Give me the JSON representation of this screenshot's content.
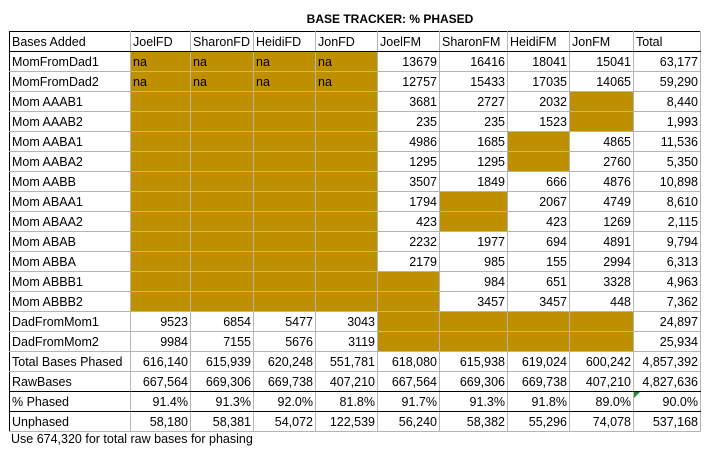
{
  "title": "BASE TRACKER: % PHASED",
  "columns": [
    "Bases Added",
    "JoelFD",
    "SharonFD",
    "HeidiFD",
    "JonFD",
    "JoelFM",
    "SharonFM",
    "HeidiFM",
    "JonFM",
    "Total"
  ],
  "rows": [
    {
      "label": "MomFromDad1",
      "cells": [
        "na",
        "na",
        "na",
        "na",
        "13679",
        "16416",
        "18041",
        "15041",
        "63,177"
      ],
      "gold": [
        0,
        1,
        2,
        3
      ]
    },
    {
      "label": "MomFromDad2",
      "cells": [
        "na",
        "na",
        "na",
        "na",
        "12757",
        "15433",
        "17035",
        "14065",
        "59,290"
      ],
      "gold": [
        0,
        1,
        2,
        3
      ]
    },
    {
      "label": "Mom AAAB1",
      "cells": [
        "",
        "",
        "",
        "",
        "3681",
        "2727",
        "2032",
        "",
        "8,440"
      ],
      "gold": [
        0,
        1,
        2,
        3,
        7
      ]
    },
    {
      "label": "Mom AAAB2",
      "cells": [
        "",
        "",
        "",
        "",
        "235",
        "235",
        "1523",
        "",
        "1,993"
      ],
      "gold": [
        0,
        1,
        2,
        3,
        7
      ]
    },
    {
      "label": "Mom AABA1",
      "cells": [
        "",
        "",
        "",
        "",
        "4986",
        "1685",
        "",
        "4865",
        "11,536"
      ],
      "gold": [
        0,
        1,
        2,
        3,
        6
      ]
    },
    {
      "label": "Mom AABA2",
      "cells": [
        "",
        "",
        "",
        "",
        "1295",
        "1295",
        "",
        "2760",
        "5,350"
      ],
      "gold": [
        0,
        1,
        2,
        3,
        6
      ]
    },
    {
      "label": "Mom AABB",
      "cells": [
        "",
        "",
        "",
        "",
        "3507",
        "1849",
        "666",
        "4876",
        "10,898"
      ],
      "gold": [
        0,
        1,
        2,
        3
      ]
    },
    {
      "label": "Mom ABAA1",
      "cells": [
        "",
        "",
        "",
        "",
        "1794",
        "",
        "2067",
        "4749",
        "8,610"
      ],
      "gold": [
        0,
        1,
        2,
        3,
        5
      ]
    },
    {
      "label": "Mom ABAA2",
      "cells": [
        "",
        "",
        "",
        "",
        "423",
        "",
        "423",
        "1269",
        "2,115"
      ],
      "gold": [
        0,
        1,
        2,
        3,
        5
      ]
    },
    {
      "label": "Mom ABAB",
      "cells": [
        "",
        "",
        "",
        "",
        "2232",
        "1977",
        "694",
        "4891",
        "9,794"
      ],
      "gold": [
        0,
        1,
        2,
        3
      ]
    },
    {
      "label": "Mom ABBA",
      "cells": [
        "",
        "",
        "",
        "",
        "2179",
        "985",
        "155",
        "2994",
        "6,313"
      ],
      "gold": [
        0,
        1,
        2,
        3
      ]
    },
    {
      "label": "Mom ABBB1",
      "cells": [
        "",
        "",
        "",
        "",
        "",
        "984",
        "651",
        "3328",
        "4,963"
      ],
      "gold": [
        0,
        1,
        2,
        3,
        4
      ]
    },
    {
      "label": "Mom ABBB2",
      "cells": [
        "",
        "",
        "",
        "",
        "",
        "3457",
        "3457",
        "448",
        "7,362"
      ],
      "gold": [
        0,
        1,
        2,
        3,
        4
      ]
    },
    {
      "label": "DadFromMom1",
      "cells": [
        "9523",
        "6854",
        "5477",
        "3043",
        "",
        "",
        "",
        "",
        "24,897"
      ],
      "gold": [
        4,
        5,
        6,
        7
      ]
    },
    {
      "label": "DadFromMom2",
      "cells": [
        "9984",
        "7155",
        "5676",
        "3119",
        "",
        "",
        "",
        "",
        "25,934"
      ],
      "gold": [
        4,
        5,
        6,
        7
      ]
    },
    {
      "label": "Total Bases Phased",
      "cells": [
        "616,140",
        "615,939",
        "620,248",
        "551,781",
        "618,080",
        "615,938",
        "619,024",
        "600,242",
        "4,857,392"
      ],
      "gold": []
    },
    {
      "label": "RawBases",
      "cells": [
        "667,564",
        "669,306",
        "669,738",
        "407,210",
        "667,564",
        "669,306",
        "669,738",
        "407,210",
        "4,827,636"
      ],
      "gold": []
    },
    {
      "label": "% Phased",
      "cells": [
        "91.4%",
        "91.3%",
        "92.0%",
        "81.8%",
        "91.7%",
        "91.3%",
        "91.8%",
        "89.0%",
        "90.0%"
      ],
      "gold": []
    },
    {
      "label": "Unphased",
      "cells": [
        "58,180",
        "58,381",
        "54,072",
        "122,539",
        "56,240",
        "58,382",
        "55,296",
        "74,078",
        "537,168"
      ],
      "gold": []
    }
  ],
  "note": "Use 674,320 for total raw bases for phasing",
  "colors": {
    "gold": "#bf8f00",
    "grid": "#b4b4b4",
    "marker": "#1e8a3a"
  }
}
